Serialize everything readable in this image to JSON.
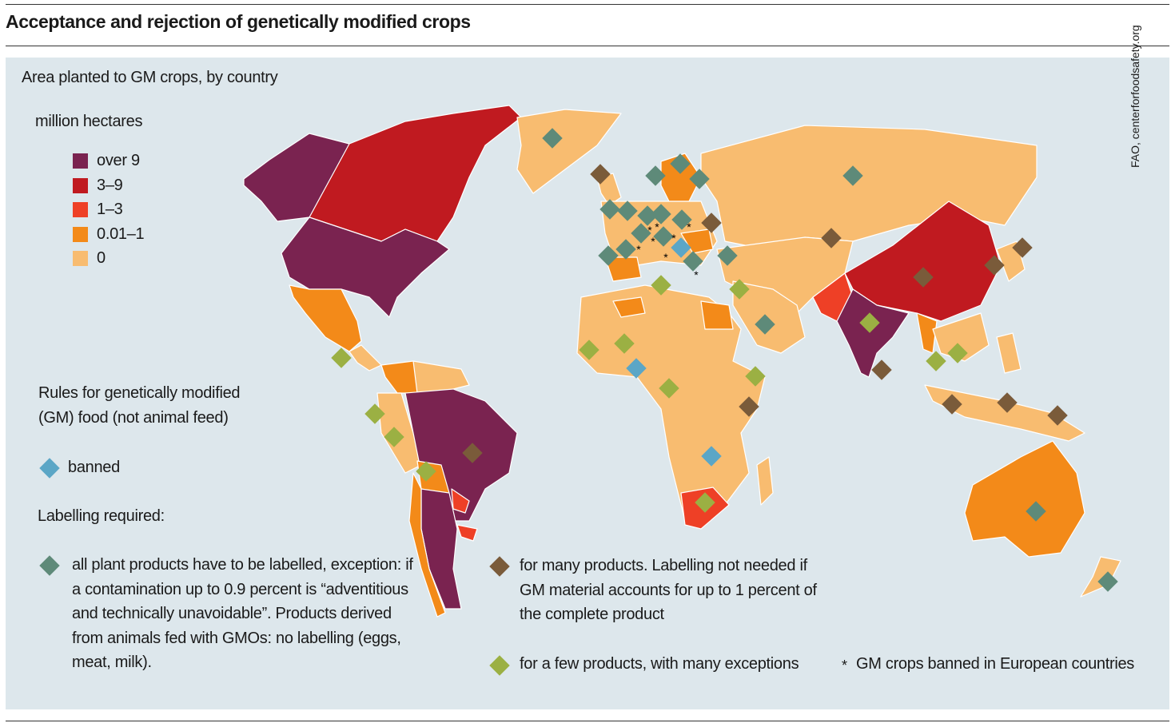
{
  "title": "Acceptance and rejection of genetically modified crops",
  "source": "FAO, centerforfoodsafety.org",
  "area_legend": {
    "heading": "Area planted to GM crops, by country",
    "unit": "million hectares",
    "items": [
      {
        "label": "over 9",
        "color": "#7a2350"
      },
      {
        "label": "3–9",
        "color": "#c01a20"
      },
      {
        "label": "1–3",
        "color": "#ee4026"
      },
      {
        "label": "0.01–1",
        "color": "#f38a19"
      },
      {
        "label": "0",
        "color": "#f8bc70"
      }
    ]
  },
  "rules_legend": {
    "heading": "Rules for genetically modified (GM) food (not animal feed)",
    "banned": {
      "label": "banned",
      "color": "#5ba6c6"
    },
    "labelling_heading": "Labelling required:",
    "all_products": {
      "label": "all plant products have to be labelled, exception: if a contamination up to 0.9 percent is “adventitious and technically unavoidable”. Products derived from animals fed with GMOs: no labelling (eggs, meat, milk).",
      "color": "#5e8a79"
    },
    "many_products": {
      "label": "for many products. Labelling not needed if GM material accounts for up to 1 percent of the complete product",
      "color": "#7a5b3a"
    },
    "few_products": {
      "label": "for a few products, with many exceptions",
      "color": "#9bb043"
    },
    "eu_ban": {
      "symbol": "*",
      "label": "GM crops banned in European countries"
    }
  }
}
